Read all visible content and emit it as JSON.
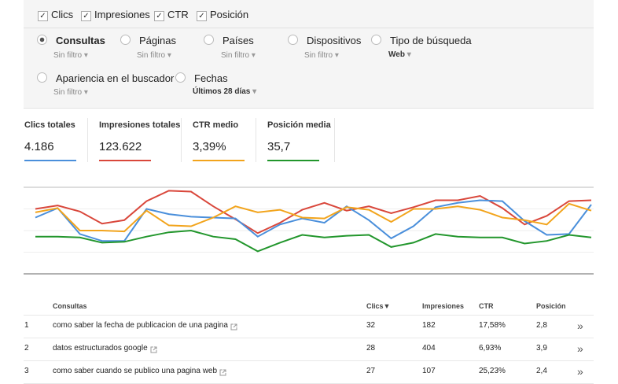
{
  "checkboxes": [
    "Clics",
    "Impresiones",
    "CTR",
    "Posición"
  ],
  "dimensions": [
    {
      "label": "Consultas",
      "filter": "Sin filtro"
    },
    {
      "label": "Páginas",
      "filter": "Sin filtro"
    },
    {
      "label": "Países",
      "filter": "Sin filtro"
    },
    {
      "label": "Dispositivos",
      "filter": "Sin filtro"
    },
    {
      "label": "Tipo de búsqueda",
      "filter": "Web"
    },
    {
      "label": "Apariencia en el buscador",
      "filter": "Sin filtro"
    },
    {
      "label": "Fechas",
      "filter": "Últimos 28 días"
    }
  ],
  "metrics": [
    {
      "label": "Clics totales",
      "value": "4.186",
      "color": "#4a8fdb"
    },
    {
      "label": "Impresiones totales",
      "value": "123.622",
      "color": "#d9473b"
    },
    {
      "label": "CTR medio",
      "value": "3,39%",
      "color": "#f2a41c"
    },
    {
      "label": "Posición media",
      "value": "35,7",
      "color": "#22962c"
    }
  ],
  "chart": {
    "type": "line",
    "ylim": [
      0,
      100
    ],
    "series": [
      {
        "color": "#d9473b",
        "values": [
          75,
          79,
          72,
          58,
          62,
          84,
          96,
          95,
          78,
          63,
          47,
          59,
          74,
          82,
          73,
          78,
          70,
          77,
          85,
          85,
          90,
          76,
          57,
          67,
          84,
          85
        ]
      },
      {
        "color": "#4a8fdb",
        "values": [
          65,
          76,
          46,
          38,
          38,
          75,
          69,
          66,
          65,
          64,
          43,
          57,
          64,
          59,
          78,
          62,
          41,
          55,
          77,
          82,
          85,
          84,
          61,
          45,
          46,
          80
        ]
      },
      {
        "color": "#f2a41c",
        "values": [
          71,
          76,
          50,
          50,
          49,
          73,
          56,
          55,
          65,
          78,
          71,
          74,
          65,
          64,
          77,
          74,
          60,
          75,
          75,
          78,
          74,
          65,
          62,
          57,
          81,
          73
        ]
      },
      {
        "color": "#22962c",
        "values": [
          43,
          43,
          42,
          36,
          37,
          43,
          48,
          50,
          43,
          40,
          26,
          36,
          45,
          42,
          44,
          45,
          31,
          36,
          46,
          43,
          42,
          42,
          35,
          38,
          45,
          42
        ]
      }
    ]
  },
  "table": {
    "header": [
      "Consultas",
      "Clics",
      "Impresiones",
      "CTR",
      "Posición"
    ],
    "rows": [
      [
        "1",
        "como saber la fecha de publicacion de una pagina",
        "32",
        "182",
        "17,58%",
        "2,8"
      ],
      [
        "2",
        "datos estructurados google",
        "28",
        "404",
        "6,93%",
        "3,9"
      ],
      [
        "3",
        "como saber cuando se publico una pagina web",
        "27",
        "107",
        "25,23%",
        "2,4"
      ]
    ]
  }
}
